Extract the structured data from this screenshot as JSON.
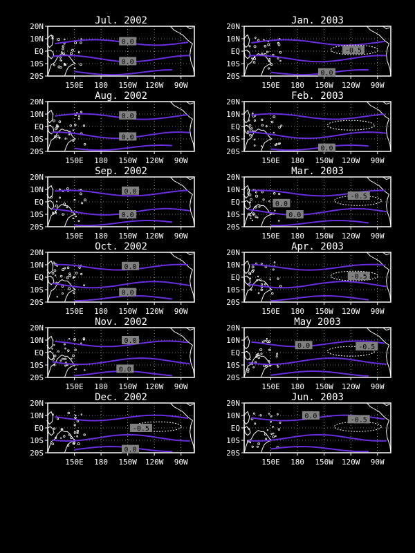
{
  "colors": {
    "background": "#000000",
    "frame": "#ffffff",
    "contour_zero": "#6a2de0",
    "contour_negative": "#ffffff",
    "label_box": "#808080"
  },
  "lat_ticks": [
    "20N",
    "10N",
    "EQ",
    "10S",
    "20S"
  ],
  "lon_ticks": [
    "150E",
    "180",
    "150W",
    "120W",
    "90W"
  ],
  "panels": [
    {
      "title": "Jul. 2002",
      "labels": [
        {
          "text": "0.0",
          "lon": 210,
          "lat": 8
        },
        {
          "text": "0.0",
          "lon": 210,
          "lat": -8
        }
      ],
      "neg_contour": false
    },
    {
      "title": "Jan. 2003",
      "labels": [
        {
          "text": "-0.5",
          "lon": 243,
          "lat": 1
        },
        {
          "text": "0.0",
          "lon": 213,
          "lat": -17
        }
      ],
      "neg_contour": true
    },
    {
      "title": "Aug. 2002",
      "labels": [
        {
          "text": "0.0",
          "lon": 210,
          "lat": 9
        },
        {
          "text": "0.0",
          "lon": 210,
          "lat": -8
        }
      ],
      "neg_contour": false
    },
    {
      "title": "Feb. 2003",
      "labels": [
        {
          "text": "0.0",
          "lon": 213,
          "lat": -17
        }
      ],
      "neg_contour": true
    },
    {
      "title": "Sep. 2002",
      "labels": [
        {
          "text": "0.0",
          "lon": 213,
          "lat": 9
        },
        {
          "text": "0.0",
          "lon": 210,
          "lat": -10
        }
      ],
      "neg_contour": false
    },
    {
      "title": "Mar. 2003",
      "labels": [
        {
          "text": "-0.5",
          "lon": 249,
          "lat": 5
        },
        {
          "text": "0.0",
          "lon": 162,
          "lat": -1
        },
        {
          "text": "0.0",
          "lon": 177,
          "lat": -10
        }
      ],
      "neg_contour": true
    },
    {
      "title": "Oct. 2002",
      "labels": [
        {
          "text": "0.0",
          "lon": 213,
          "lat": 9
        },
        {
          "text": "0.0",
          "lon": 210,
          "lat": -12
        }
      ],
      "neg_contour": false
    },
    {
      "title": "Apr. 2003",
      "labels": [
        {
          "text": "-0.5",
          "lon": 249,
          "lat": 1
        }
      ],
      "neg_contour": true
    },
    {
      "title": "Nov. 2002",
      "labels": [
        {
          "text": "0.0",
          "lon": 213,
          "lat": 10
        },
        {
          "text": "0.0",
          "lon": 207,
          "lat": -13
        }
      ],
      "neg_contour": false
    },
    {
      "title": "May 2003",
      "labels": [
        {
          "text": "0.0",
          "lon": 187,
          "lat": 6
        },
        {
          "text": "-0.5",
          "lon": 258,
          "lat": 5
        }
      ],
      "neg_contour": true
    },
    {
      "title": "Dec. 2002",
      "labels": [
        {
          "text": "-0.5",
          "lon": 225,
          "lat": 0
        },
        {
          "text": "0.0",
          "lon": 213,
          "lat": -17
        }
      ],
      "neg_contour": true
    },
    {
      "title": "Jun. 2003",
      "labels": [
        {
          "text": "0.0",
          "lon": 195,
          "lat": 10
        },
        {
          "text": "-0.5",
          "lon": 249,
          "lat": 7
        }
      ],
      "neg_contour": true
    }
  ]
}
